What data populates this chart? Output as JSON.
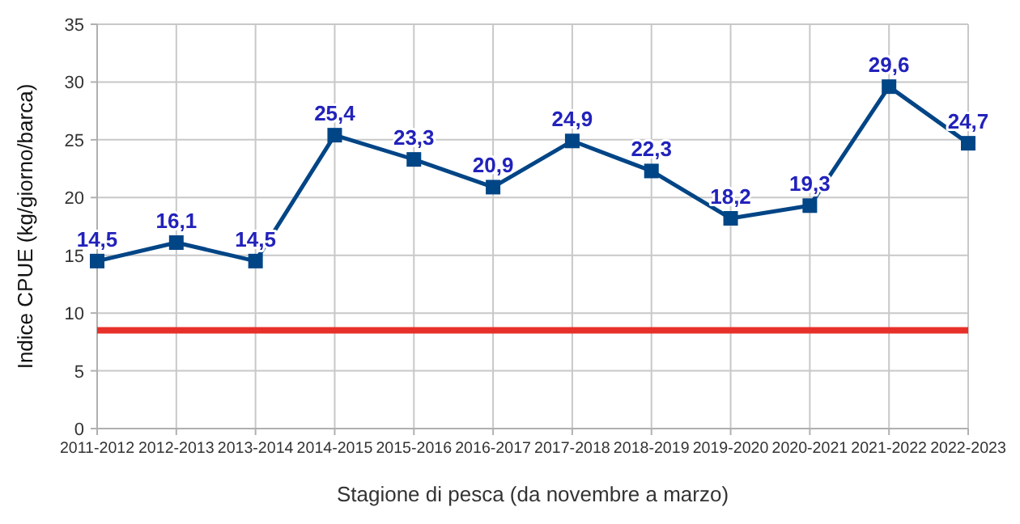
{
  "chart_data": {
    "type": "line",
    "xlabel": "Stagione di pesca (da novembre a marzo)",
    "ylabel": "Indice CPUE (kg/giorno/barca)",
    "categories": [
      "2011-2012",
      "2012-2013",
      "2013-2014",
      "2014-2015",
      "2015-2016",
      "2016-2017",
      "2017-2018",
      "2018-2019",
      "2019-2020",
      "2020-2021",
      "2021-2022",
      "2022-2023"
    ],
    "series": [
      {
        "color": "#004586",
        "values": [
          14.5,
          16.1,
          14.5,
          25.4,
          23.3,
          20.9,
          24.9,
          22.3,
          18.2,
          19.3,
          29.6,
          24.7
        ],
        "value_labels": [
          "14,5",
          "16,1",
          "14,5",
          "25,4",
          "23,3",
          "20,9",
          "24,9",
          "22,3",
          "18,2",
          "19,3",
          "29,6",
          "24,7"
        ]
      }
    ],
    "ylim": [
      0,
      35
    ],
    "yticks": [
      0,
      5,
      10,
      15,
      20,
      25,
      30,
      35
    ],
    "grid": true,
    "marker": "square",
    "line_style": "solid",
    "ref_lines": [
      {
        "axis": "y",
        "value": 8.5,
        "color": "#e8302a"
      }
    ]
  }
}
